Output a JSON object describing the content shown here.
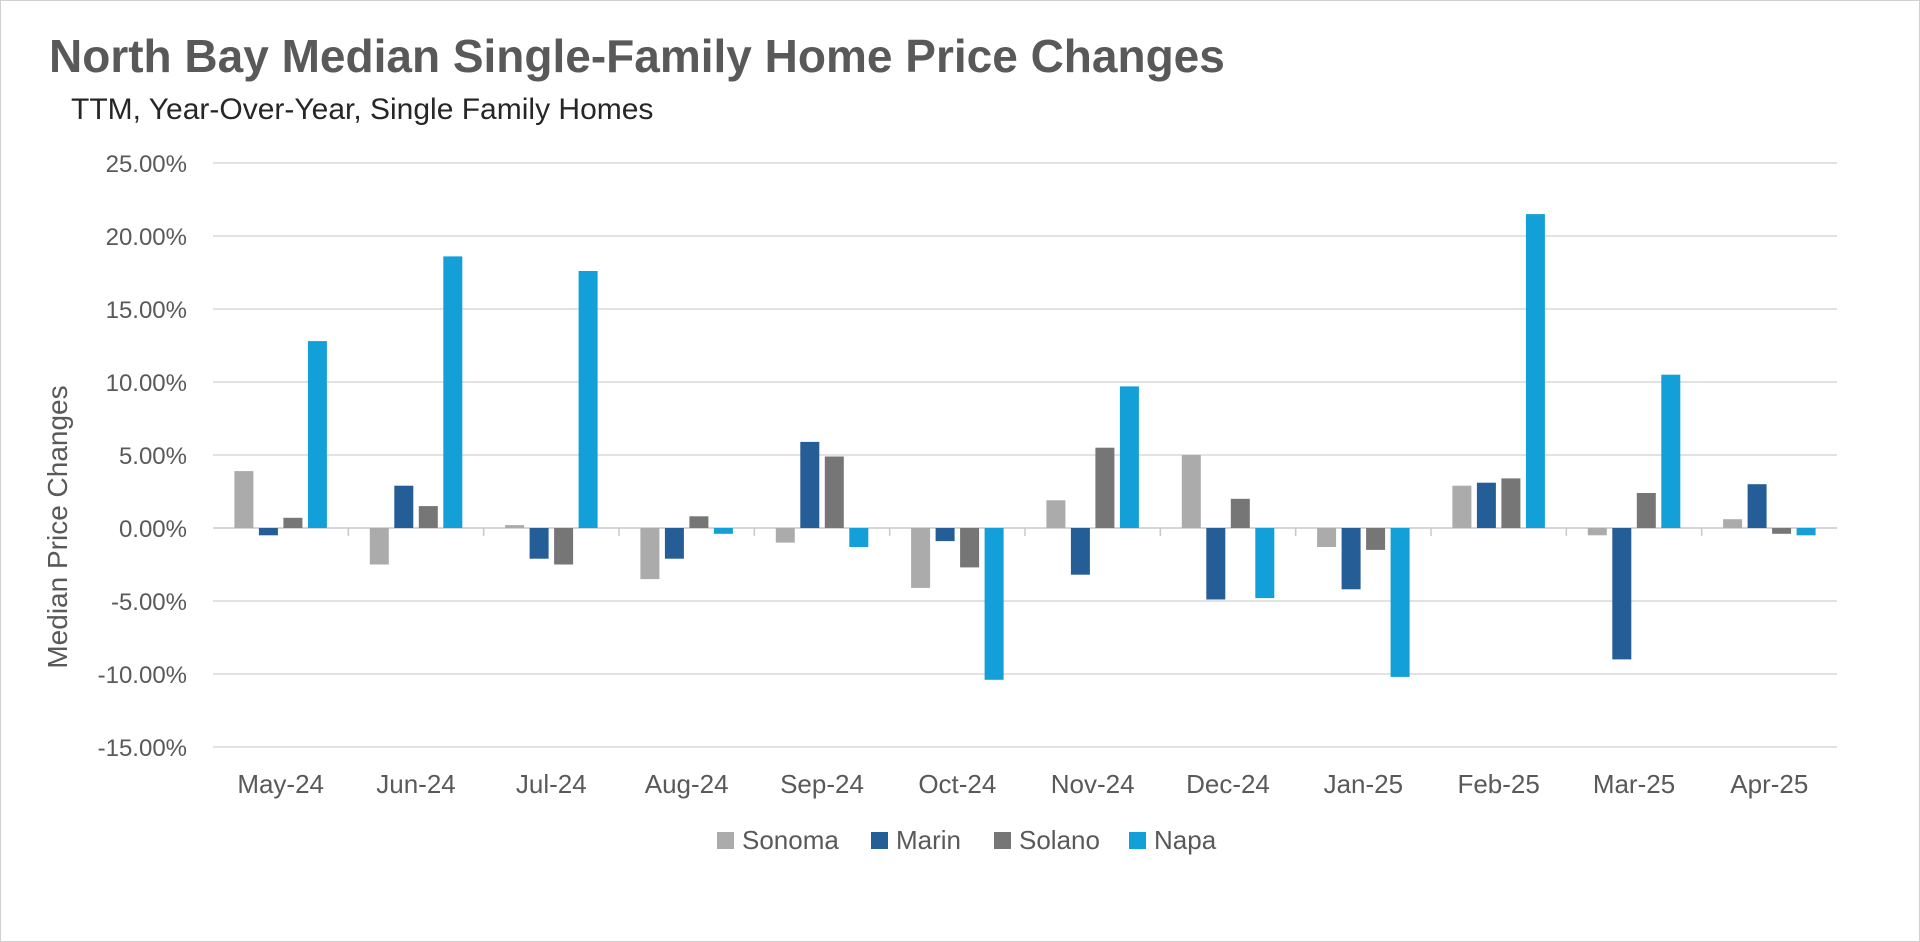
{
  "chart_data": {
    "type": "bar",
    "title": "North Bay Median Single-Family Home Price Changes",
    "subtitle": "TTM, Year-Over-Year, Single Family Homes",
    "xlabel": "",
    "ylabel": "Median Price Changes",
    "ylim": [
      -15,
      25
    ],
    "ytick_step": 5,
    "ytick_labels": [
      "25.00%",
      "20.00%",
      "15.00%",
      "10.00%",
      "5.00%",
      "0.00%",
      "-5.00%",
      "-10.00%",
      "-15.00%"
    ],
    "grid": true,
    "legend_position": "bottom",
    "categories": [
      "May-24",
      "Jun-24",
      "Jul-24",
      "Aug-24",
      "Sep-24",
      "Oct-24",
      "Nov-24",
      "Dec-24",
      "Jan-25",
      "Feb-25",
      "Mar-25",
      "Apr-25"
    ],
    "series": [
      {
        "name": "Sonoma",
        "color": "#ababab",
        "values": [
          3.9,
          -2.5,
          0.2,
          -3.5,
          -1.0,
          -4.1,
          1.9,
          5.0,
          -1.3,
          2.9,
          -0.5,
          0.6
        ]
      },
      {
        "name": "Marin",
        "color": "#255e96",
        "values": [
          -0.5,
          2.9,
          -2.1,
          -2.1,
          5.9,
          -0.9,
          -3.2,
          -4.9,
          -4.2,
          3.1,
          -9.0,
          3.0
        ]
      },
      {
        "name": "Solano",
        "color": "#767676",
        "values": [
          0.7,
          1.5,
          -2.5,
          0.8,
          4.9,
          -2.7,
          5.5,
          2.0,
          -1.5,
          3.4,
          2.4,
          -0.4
        ]
      },
      {
        "name": "Napa",
        "color": "#13a0d8",
        "values": [
          12.8,
          18.6,
          17.6,
          -0.4,
          -1.3,
          -10.4,
          9.7,
          -4.8,
          -10.2,
          21.5,
          10.5,
          -0.5
        ]
      }
    ]
  }
}
